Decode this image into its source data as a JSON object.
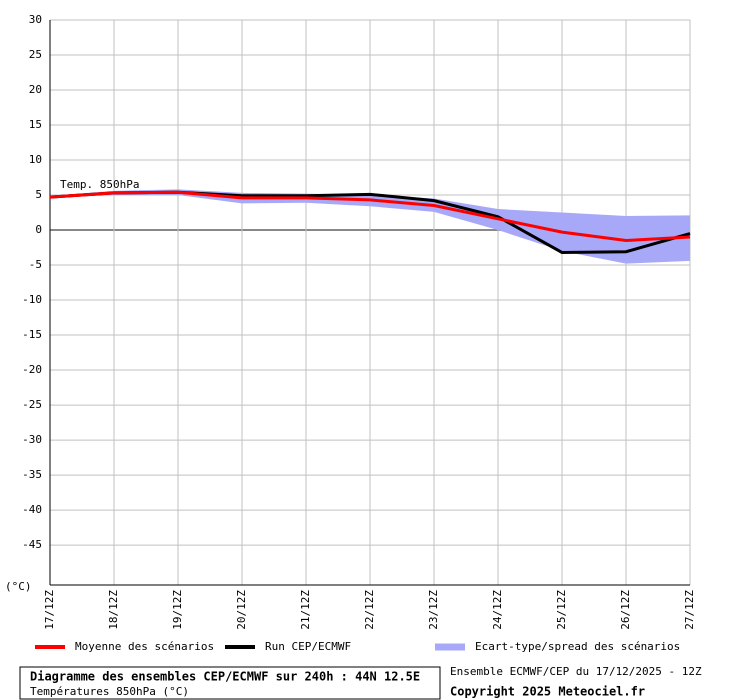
{
  "chart_data": {
    "type": "line",
    "annotation": "Temp. 850hPa",
    "unit_label": "(°C)",
    "categories": [
      "17/12Z",
      "18/12Z",
      "19/12Z",
      "20/12Z",
      "21/12Z",
      "22/12Z",
      "23/12Z",
      "24/12Z",
      "25/12Z",
      "26/12Z",
      "27/12Z"
    ],
    "series": [
      {
        "name": "Moyenne des scénarios",
        "color": "#ff0000",
        "values": [
          4.7,
          5.3,
          5.4,
          4.6,
          4.6,
          4.3,
          3.5,
          1.6,
          -0.3,
          -1.5,
          -1.0
        ]
      },
      {
        "name": "Run CEP/ECMWF",
        "color": "#000000",
        "values": [
          4.7,
          5.3,
          5.4,
          4.9,
          4.9,
          5.1,
          4.2,
          1.9,
          -3.2,
          -3.1,
          -0.5
        ]
      },
      {
        "name": "Ecart-type/spread des scénarios",
        "color": "#a8a8f8",
        "high": [
          4.9,
          5.6,
          5.8,
          5.3,
          5.2,
          5.0,
          4.5,
          3.0,
          2.5,
          2.0,
          2.1
        ],
        "low": [
          4.6,
          5.0,
          5.0,
          3.8,
          3.9,
          3.4,
          2.6,
          0,
          -3.0,
          -4.8,
          -4.4
        ]
      }
    ],
    "ylim": [
      -50.7,
      30
    ],
    "yticks": [
      30,
      25,
      20,
      15,
      10,
      5,
      0,
      -5,
      -10,
      -15,
      -20,
      -25,
      -30,
      -35,
      -40,
      -45
    ],
    "grid": true
  },
  "footer": {
    "title": "Diagramme des ensembles CEP/ECMWF sur 240h : 44N 12.5E",
    "subtitle": "Températures 850hPa (°C)",
    "run": "Ensemble ECMWF/CEP du 17/12/2025 - 12Z",
    "copyright": "Copyright 2025 Meteociel.fr"
  }
}
